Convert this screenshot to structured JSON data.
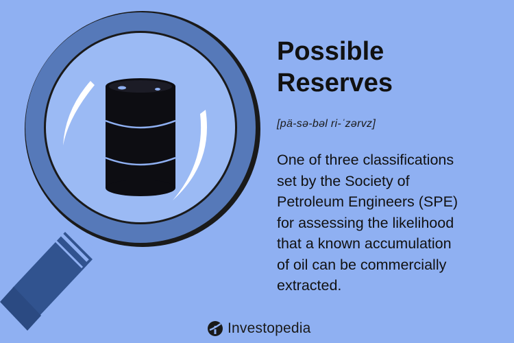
{
  "term": {
    "title_lines": [
      "Possible",
      "Reserves"
    ],
    "pronunciation": "[pä-sə-bəl ri-ˈzərvz]",
    "definition_lines": [
      "One of three classifications",
      "set by the Society of",
      "Petroleum Engineers (SPE)",
      "for assessing the likelihood",
      "that a known accumulation",
      "of oil can be commercially",
      "extracted."
    ]
  },
  "brand": {
    "name": "Investopedia",
    "icon": "investopedia-logo-icon"
  },
  "illustration": {
    "icons": [
      "magnifying-glass-icon",
      "oil-barrel-icon"
    ]
  },
  "colors": {
    "background": "#8fb0f2",
    "lens_frame": "#5679b9",
    "handle": "#31538f",
    "barrel": "#0d0d12",
    "text": "#111111"
  }
}
